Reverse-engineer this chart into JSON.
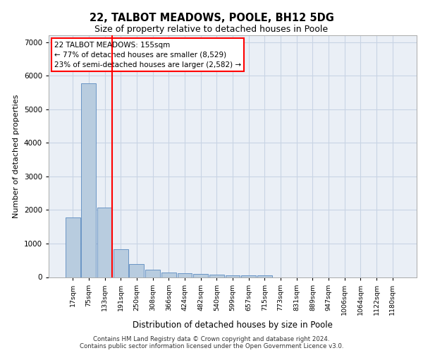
{
  "title_line1": "22, TALBOT MEADOWS, POOLE, BH12 5DG",
  "title_line2": "Size of property relative to detached houses in Poole",
  "xlabel": "Distribution of detached houses by size in Poole",
  "ylabel": "Number of detached properties",
  "bar_labels": [
    "17sqm",
    "75sqm",
    "133sqm",
    "191sqm",
    "250sqm",
    "308sqm",
    "366sqm",
    "424sqm",
    "482sqm",
    "540sqm",
    "599sqm",
    "657sqm",
    "715sqm",
    "773sqm",
    "831sqm",
    "889sqm",
    "947sqm",
    "1006sqm",
    "1064sqm",
    "1122sqm",
    "1180sqm"
  ],
  "bar_values": [
    1780,
    5780,
    2080,
    830,
    380,
    220,
    130,
    110,
    90,
    65,
    55,
    50,
    45,
    0,
    0,
    0,
    0,
    0,
    0,
    0,
    0
  ],
  "bar_color": "#b8ccdf",
  "bar_edge_color": "#5a8abf",
  "red_line_index": 2.5,
  "annotation_lines": [
    "22 TALBOT MEADOWS: 155sqm",
    "← 77% of detached houses are smaller (8,529)",
    "23% of semi-detached houses are larger (2,582) →"
  ],
  "ylim": [
    0,
    7200
  ],
  "yticks": [
    0,
    1000,
    2000,
    3000,
    4000,
    5000,
    6000,
    7000
  ],
  "grid_color": "#c8d4e4",
  "bg_color": "#eaeff6",
  "footer_line1": "Contains HM Land Registry data © Crown copyright and database right 2024.",
  "footer_line2": "Contains public sector information licensed under the Open Government Licence v3.0."
}
